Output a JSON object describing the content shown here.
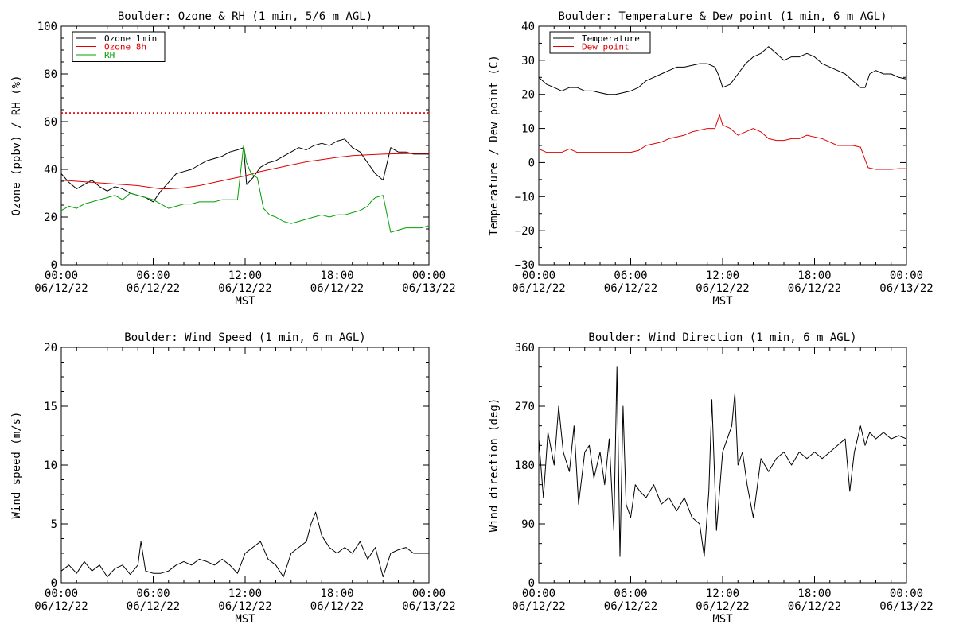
{
  "chart_data": [
    {
      "type": "line",
      "title": "Boulder: Ozone & RH (1 min, 5/6 m AGL)",
      "xlabel": "MST",
      "ylabel": "Ozone (ppbv) / RH (%)",
      "xlim": [
        0,
        24
      ],
      "ylim": [
        0,
        110
      ],
      "yticks": [
        "0",
        "20",
        "40",
        "60",
        "80",
        "100"
      ],
      "xticks": [
        {
          "time": "00:00",
          "date": "06/12/22"
        },
        {
          "time": "06:00",
          "date": "06/12/22"
        },
        {
          "time": "12:00",
          "date": "06/12/22"
        },
        {
          "time": "18:00",
          "date": "06/12/22"
        },
        {
          "time": "00:00",
          "date": "06/13/22"
        }
      ],
      "legend": "top-left",
      "grid": false,
      "reference_line": {
        "y": 70,
        "color": "#e00000",
        "style": "dotted"
      },
      "series": [
        {
          "name": "Ozone 1min",
          "color": "#000000",
          "x": [
            0,
            0.5,
            1,
            1.5,
            2,
            2.5,
            3,
            3.5,
            4,
            4.5,
            5,
            5.5,
            6,
            6.5,
            7,
            7.5,
            8,
            8.5,
            9,
            9.5,
            10,
            10.5,
            11,
            11.5,
            11.9,
            12.1,
            12.5,
            13,
            13.5,
            14,
            14.5,
            15,
            15.5,
            16,
            16.5,
            17,
            17.5,
            18,
            18.5,
            19,
            19.5,
            20,
            20.5,
            21,
            21.5,
            22,
            22.5,
            23,
            23.5,
            24
          ],
          "y": [
            42,
            38,
            35,
            37,
            39,
            36,
            34,
            36,
            35,
            33,
            32,
            31,
            29,
            34,
            38,
            42,
            43,
            44,
            46,
            48,
            49,
            50,
            52,
            53,
            54,
            37,
            40,
            45,
            47,
            48,
            50,
            52,
            54,
            53,
            55,
            56,
            55,
            57,
            58,
            54,
            52,
            47,
            42,
            39,
            54,
            52,
            52,
            51,
            51,
            51
          ]
        },
        {
          "name": "Ozone 8h",
          "color": "#e00000",
          "x": [
            0,
            1,
            2,
            3,
            4,
            5,
            6,
            6.5,
            7,
            8,
            9,
            10,
            11,
            12,
            13,
            14,
            15,
            16,
            17,
            18,
            19,
            20,
            21,
            22,
            23,
            24
          ],
          "y": [
            39,
            38.5,
            38,
            37.5,
            37,
            36.5,
            35.5,
            35,
            35,
            35.5,
            36.5,
            38,
            39.5,
            41,
            43,
            44.5,
            46,
            47.5,
            48.5,
            49.5,
            50.3,
            50.7,
            51,
            51.2,
            51.3,
            51.3
          ]
        },
        {
          "name": "RH",
          "color": "#00a000",
          "x": [
            0,
            0.5,
            1,
            1.5,
            2,
            2.5,
            3,
            3.5,
            4,
            4.5,
            5,
            5.5,
            6,
            6.5,
            7,
            7.5,
            8,
            8.5,
            9,
            9.5,
            10,
            10.5,
            11,
            11.5,
            11.9,
            12.1,
            12.4,
            12.8,
            13.2,
            13.6,
            14,
            14.5,
            15,
            15.5,
            16,
            16.5,
            17,
            17.5,
            18,
            18.5,
            19,
            19.5,
            20,
            20.2,
            20.5,
            21,
            21.5,
            22,
            22.5,
            23,
            23.5,
            24
          ],
          "y": [
            25,
            27,
            26,
            28,
            29,
            30,
            31,
            32,
            30,
            33,
            32,
            31,
            30,
            28,
            26,
            27,
            28,
            28,
            29,
            29,
            29,
            30,
            30,
            30,
            55,
            47,
            42,
            40,
            26,
            23,
            22,
            20,
            19,
            20,
            21,
            22,
            23,
            22,
            23,
            23,
            24,
            25,
            27,
            29,
            31,
            32,
            15,
            16,
            17,
            17,
            17,
            18
          ]
        }
      ]
    },
    {
      "type": "line",
      "title": "Boulder: Temperature & Dew point (1 min, 6 m AGL)",
      "xlabel": "MST",
      "ylabel": "Temperature / Dew point (C)",
      "xlim": [
        0,
        24
      ],
      "ylim": [
        -30,
        40
      ],
      "yticks": [
        "−30",
        "−20",
        "−10",
        "0",
        "10",
        "20",
        "30",
        "40"
      ],
      "xticks": [
        {
          "time": "00:00",
          "date": "06/12/22"
        },
        {
          "time": "06:00",
          "date": "06/12/22"
        },
        {
          "time": "12:00",
          "date": "06/12/22"
        },
        {
          "time": "18:00",
          "date": "06/12/22"
        },
        {
          "time": "00:00",
          "date": "06/13/22"
        }
      ],
      "legend": "top-left",
      "grid": false,
      "series": [
        {
          "name": "Temperature",
          "color": "#000000",
          "x": [
            0,
            0.5,
            1,
            1.5,
            2,
            2.5,
            3,
            3.5,
            4,
            4.5,
            5,
            5.5,
            6,
            6.5,
            7,
            7.5,
            8,
            8.5,
            9,
            9.5,
            10,
            10.5,
            11,
            11.5,
            11.8,
            12,
            12.5,
            13,
            13.5,
            14,
            14.5,
            15,
            15.5,
            16,
            16.5,
            17,
            17.5,
            18,
            18.5,
            19,
            19.5,
            20,
            20.5,
            21,
            21.3,
            21.6,
            22,
            22.5,
            23,
            23.5,
            24
          ],
          "y": [
            25,
            23,
            22,
            21,
            22,
            22,
            21,
            21,
            20.5,
            20,
            20,
            20.5,
            21,
            22,
            24,
            25,
            26,
            27,
            28,
            28,
            28.5,
            29,
            29,
            28,
            25,
            22,
            23,
            26,
            29,
            31,
            32,
            34,
            32,
            30,
            31,
            31,
            32,
            31,
            29,
            28,
            27,
            26,
            24,
            22,
            22,
            26,
            27,
            26,
            26,
            25,
            24.5
          ]
        },
        {
          "name": "Dew point",
          "color": "#e00000",
          "x": [
            0,
            0.5,
            1,
            1.5,
            2,
            2.5,
            3,
            3.5,
            4,
            4.5,
            5,
            5.5,
            6,
            6.5,
            7,
            7.5,
            8,
            8.5,
            9,
            9.5,
            10,
            10.5,
            11,
            11.5,
            11.8,
            12,
            12.5,
            13,
            13.5,
            14,
            14.5,
            15,
            15.5,
            16,
            16.5,
            17,
            17.5,
            18,
            18.5,
            19,
            19.5,
            20,
            20.5,
            21,
            21.2,
            21.5,
            22,
            22.5,
            23,
            23.5,
            24
          ],
          "y": [
            4,
            3,
            3,
            3,
            4,
            3,
            3,
            3,
            3,
            3,
            3,
            3,
            3,
            3.5,
            5,
            5.5,
            6,
            7,
            7.5,
            8,
            9,
            9.5,
            10,
            10,
            14,
            11,
            10,
            8,
            9,
            10,
            9,
            7,
            6.5,
            6.5,
            7,
            7,
            8,
            7.5,
            7,
            6,
            5,
            5,
            5,
            4.5,
            2,
            -1.5,
            -2,
            -2,
            -2,
            -1.8,
            -1.8
          ]
        }
      ]
    },
    {
      "type": "line",
      "title": "Boulder: Wind Speed (1 min, 6 m AGL)",
      "xlabel": "MST",
      "ylabel": "Wind speed (m/s)",
      "xlim": [
        0,
        24
      ],
      "ylim": [
        0,
        20
      ],
      "yticks": [
        "0",
        "5",
        "10",
        "15",
        "20"
      ],
      "xticks": [
        {
          "time": "00:00",
          "date": "06/12/22"
        },
        {
          "time": "06:00",
          "date": "06/12/22"
        },
        {
          "time": "12:00",
          "date": "06/12/22"
        },
        {
          "time": "18:00",
          "date": "06/12/22"
        },
        {
          "time": "00:00",
          "date": "06/13/22"
        }
      ],
      "grid": false,
      "series": [
        {
          "color": "#000000",
          "x": [
            0,
            0.5,
            1,
            1.5,
            2,
            2.5,
            3,
            3.5,
            4,
            4.5,
            5,
            5.2,
            5.5,
            6,
            6.5,
            7,
            7.5,
            8,
            8.5,
            9,
            9.5,
            10,
            10.5,
            11,
            11.5,
            12,
            12.5,
            13,
            13.5,
            14,
            14.5,
            15,
            15.5,
            16,
            16.3,
            16.6,
            17,
            17.5,
            18,
            18.5,
            19,
            19.5,
            20,
            20.5,
            21,
            21.5,
            22,
            22.5,
            23,
            23.5,
            24
          ],
          "y": [
            1,
            1.5,
            0.8,
            1.8,
            1,
            1.5,
            0.5,
            1.2,
            1.5,
            0.7,
            1.5,
            3.5,
            1,
            0.8,
            0.8,
            1,
            1.5,
            1.8,
            1.5,
            2,
            1.8,
            1.5,
            2,
            1.5,
            0.8,
            2.5,
            3,
            3.5,
            2,
            1.5,
            0.5,
            2.5,
            3,
            3.5,
            5,
            6,
            4,
            3,
            2.5,
            3,
            2.5,
            3.5,
            2,
            3,
            0.5,
            2.5,
            2.8,
            3,
            2.5,
            2.5,
            2.5
          ]
        }
      ]
    },
    {
      "type": "line",
      "title": "Boulder: Wind Direction (1 min, 6 m AGL)",
      "xlabel": "MST",
      "ylabel": "Wind direction (deg)",
      "xlim": [
        0,
        24
      ],
      "ylim": [
        0,
        360
      ],
      "yticks": [
        "0",
        "90",
        "180",
        "270",
        "360"
      ],
      "xticks": [
        {
          "time": "00:00",
          "date": "06/12/22"
        },
        {
          "time": "06:00",
          "date": "06/12/22"
        },
        {
          "time": "12:00",
          "date": "06/12/22"
        },
        {
          "time": "18:00",
          "date": "06/12/22"
        },
        {
          "time": "00:00",
          "date": "06/13/22"
        }
      ],
      "grid": false,
      "series": [
        {
          "color": "#000000",
          "x": [
            0,
            0.3,
            0.6,
            1,
            1.3,
            1.6,
            2,
            2.3,
            2.6,
            3,
            3.3,
            3.6,
            4,
            4.3,
            4.6,
            4.9,
            5.1,
            5.3,
            5.5,
            5.7,
            6,
            6.3,
            6.6,
            7,
            7.5,
            8,
            8.5,
            9,
            9.5,
            10,
            10.5,
            10.8,
            11.1,
            11.3,
            11.6,
            12,
            12.3,
            12.6,
            12.8,
            13,
            13.3,
            13.6,
            14,
            14.5,
            15,
            15.5,
            16,
            16.5,
            17,
            17.5,
            18,
            18.5,
            19,
            19.5,
            20,
            20.3,
            20.6,
            21,
            21.3,
            21.6,
            22,
            22.5,
            23,
            23.5,
            24
          ],
          "y": [
            220,
            130,
            230,
            180,
            270,
            200,
            170,
            240,
            120,
            200,
            210,
            160,
            200,
            150,
            220,
            80,
            330,
            40,
            270,
            120,
            100,
            150,
            140,
            130,
            150,
            120,
            130,
            110,
            130,
            100,
            90,
            40,
            140,
            280,
            80,
            200,
            220,
            240,
            290,
            180,
            200,
            150,
            100,
            190,
            170,
            190,
            200,
            180,
            200,
            190,
            200,
            190,
            200,
            210,
            220,
            140,
            200,
            240,
            210,
            230,
            220,
            230,
            220,
            225,
            220
          ]
        }
      ]
    }
  ]
}
